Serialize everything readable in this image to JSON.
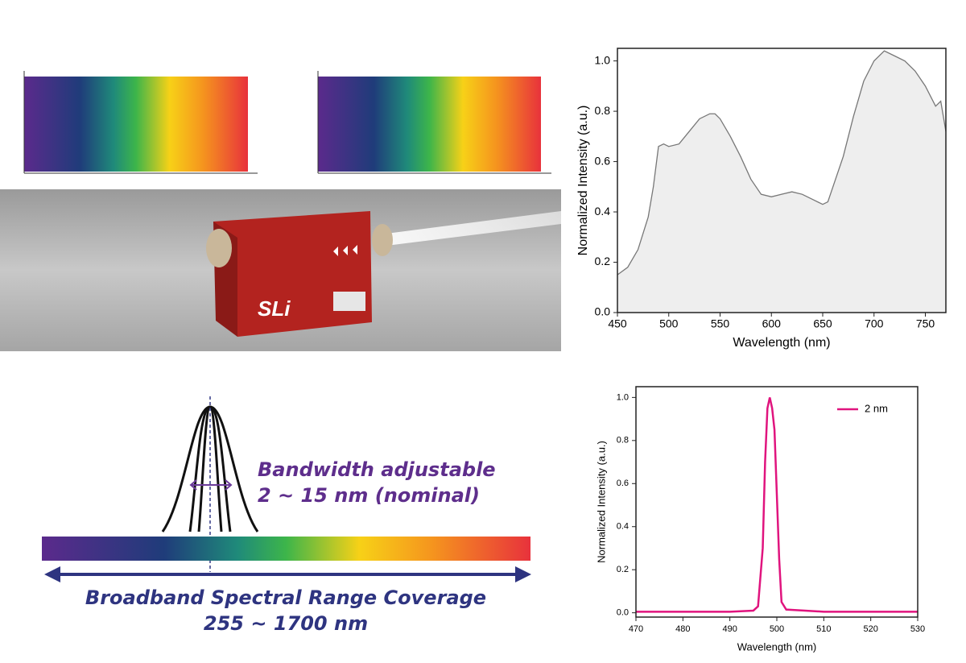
{
  "device": {
    "logo": "SLi"
  },
  "illustration": {
    "bandwidth_title": "Bandwidth adjustable",
    "bandwidth_range": "2 ~ 15 nm (nominal)",
    "coverage_title": "Broadband Spectral Range Coverage",
    "coverage_range": "255 ~ 1700 nm"
  },
  "chart_data": [
    {
      "type": "area",
      "x_label": "Wavelength (nm)",
      "y_label": "Normalized Intensity (a.u.)",
      "xlim": [
        450,
        770
      ],
      "ylim": [
        0,
        1.05
      ],
      "xticks": [
        450,
        500,
        550,
        600,
        650,
        700,
        750
      ],
      "yticks": [
        {
          "value": 0,
          "label": "0.0"
        },
        0.2,
        0.4,
        0.6,
        0.8,
        {
          "value": 1,
          "label": "1.0"
        }
      ],
      "x": [
        450,
        460,
        470,
        480,
        485,
        490,
        495,
        500,
        510,
        520,
        530,
        540,
        545,
        550,
        560,
        570,
        580,
        590,
        600,
        610,
        620,
        630,
        640,
        650,
        655,
        660,
        670,
        680,
        690,
        700,
        710,
        720,
        730,
        740,
        750,
        760,
        765,
        770
      ],
      "series": [
        {
          "color": "#777777",
          "fill": "#eeeeee",
          "values": [
            0.15,
            0.18,
            0.25,
            0.38,
            0.5,
            0.66,
            0.67,
            0.66,
            0.67,
            0.72,
            0.77,
            0.79,
            0.79,
            0.77,
            0.7,
            0.62,
            0.53,
            0.47,
            0.46,
            0.47,
            0.48,
            0.47,
            0.45,
            0.43,
            0.44,
            0.5,
            0.62,
            0.78,
            0.92,
            1.0,
            1.04,
            1.02,
            1.0,
            0.96,
            0.9,
            0.82,
            0.84,
            0.72
          ]
        }
      ]
    },
    {
      "type": "line",
      "x_label": "Wavelength (nm)",
      "y_label": "Normalized Intensity (a.u.)",
      "xlim": [
        470,
        530
      ],
      "ylim": [
        -0.02,
        1.05
      ],
      "xticks": [
        470,
        480,
        490,
        500,
        510,
        520,
        530
      ],
      "yticks": [
        {
          "value": 0,
          "label": "0.0"
        },
        0.2,
        0.4,
        0.6,
        0.8,
        {
          "value": 1,
          "label": "1.0"
        }
      ],
      "legend": "upper right",
      "x": [
        470,
        490,
        495,
        496,
        497,
        497.5,
        498,
        498.5,
        499,
        499.5,
        500,
        500.5,
        501,
        502,
        510,
        530
      ],
      "series": [
        {
          "name": "2 nm",
          "color": "#e0147e",
          "values": [
            0.005,
            0.005,
            0.01,
            0.03,
            0.3,
            0.7,
            0.95,
            1.0,
            0.95,
            0.85,
            0.55,
            0.25,
            0.05,
            0.015,
            0.005,
            0.005
          ]
        }
      ]
    }
  ]
}
